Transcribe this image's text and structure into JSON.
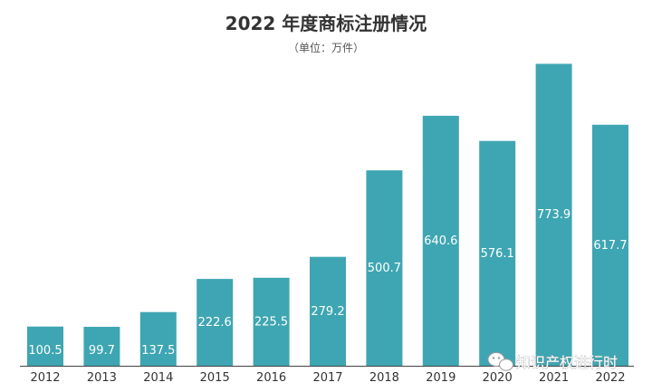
{
  "chart_data": {
    "type": "bar",
    "title": "2022 年度商标注册情况",
    "subtitle": "（单位：万件）",
    "categories": [
      "2012",
      "2013",
      "2014",
      "2015",
      "2016",
      "2017",
      "2018",
      "2019",
      "2020",
      "2021",
      "2022"
    ],
    "values": [
      100.5,
      99.7,
      137.5,
      222.6,
      225.5,
      279.2,
      500.7,
      640.6,
      576.1,
      773.9,
      617.7
    ],
    "xlabel": "",
    "ylabel": "",
    "ylim": [
      0,
      800
    ],
    "grid": false,
    "legend": "none",
    "colors": {
      "bar": "#3ea6b2",
      "axis": "#444444",
      "text": "#333333",
      "label": "#ffffff"
    }
  },
  "watermark": {
    "text": "知识产权进行时",
    "icon": "wechat-icon"
  }
}
